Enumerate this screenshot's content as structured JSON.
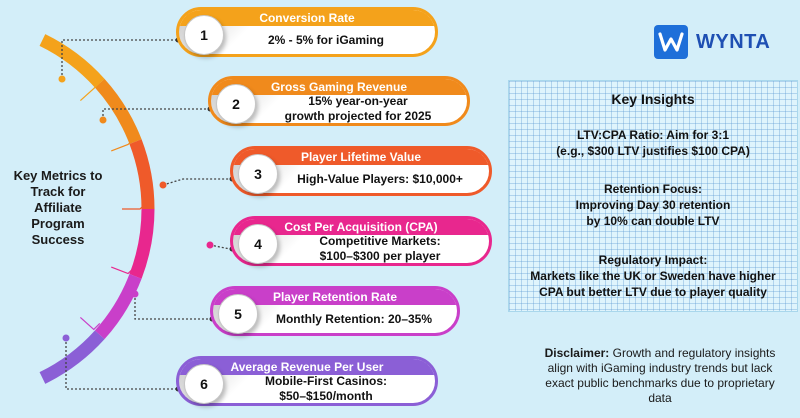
{
  "center_title": "Key Metrics to Track for Affiliate Program Success",
  "brand": {
    "name": "WYNTA",
    "color": "#1e6fd9"
  },
  "metrics": [
    {
      "number": "1",
      "title": "Conversion Rate",
      "lines": [
        "2% - 5% for iGaming"
      ],
      "color": "#f4a21b"
    },
    {
      "number": "2",
      "title": "Gross Gaming Revenue",
      "lines": [
        "15% year-on-year",
        "growth projected for 2025"
      ],
      "color": "#f08a1c"
    },
    {
      "number": "3",
      "title": "Player Lifetime Value",
      "lines": [
        "High-Value Players: $10,000+"
      ],
      "color": "#ef5a2a"
    },
    {
      "number": "4",
      "title": "Cost Per Acquisition (CPA)",
      "lines": [
        "Competitive Markets:",
        "$100–$300 per player"
      ],
      "color": "#e8278e"
    },
    {
      "number": "5",
      "title": "Player Retention Rate",
      "lines": [
        "Monthly Retention: 20–35%"
      ],
      "color": "#c93fc9"
    },
    {
      "number": "6",
      "title": "Average Revenue Per User",
      "lines": [
        "Mobile-First Casinos:",
        "$50–$150/month"
      ],
      "color": "#8b5fd6"
    }
  ],
  "insights": {
    "title": "Key Insights",
    "blocks": [
      {
        "lines": [
          "LTV:CPA Ratio: Aim for 3:1",
          "(e.g., $300 LTV justifies $100 CPA)"
        ]
      },
      {
        "lines": [
          "Retention Focus:",
          "Improving Day 30 retention",
          "by 10% can double LTV"
        ]
      },
      {
        "lines": [
          "Regulatory Impact:",
          "Markets like the UK or Sweden have higher",
          "CPA but better LTV due to player quality"
        ]
      }
    ]
  },
  "disclaimer": {
    "label": "Disclaimer:",
    "text": " Growth and regulatory insights align with iGaming industry trends but lack exact public benchmarks due to proprietary data"
  }
}
